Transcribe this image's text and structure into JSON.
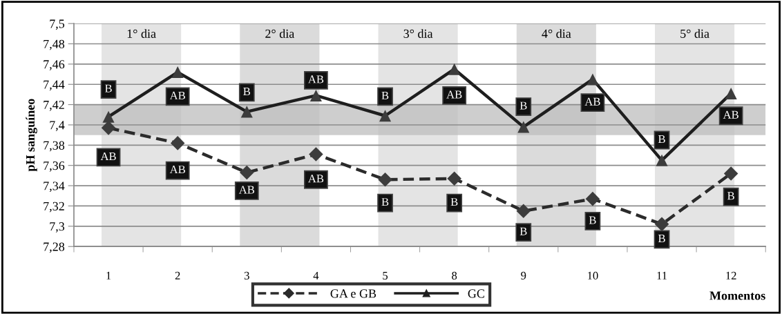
{
  "chart_data": {
    "type": "line",
    "xlabel": "Momentos",
    "ylabel": "pH sanguíneo",
    "categories": [
      "1",
      "2",
      "3",
      "4",
      "5",
      "8",
      "9",
      "10",
      "11",
      "12"
    ],
    "series": [
      {
        "name": "GA e GB",
        "color": "#2b2b2b",
        "marker": "diamond",
        "line_style": "dashed",
        "values": [
          7.397,
          7.382,
          7.353,
          7.371,
          7.346,
          7.347,
          7.315,
          7.327,
          7.302,
          7.352
        ]
      },
      {
        "name": "GC",
        "color": "#1e1e1e",
        "marker": "triangle",
        "line_style": "solid",
        "values": [
          7.408,
          7.452,
          7.413,
          7.429,
          7.409,
          7.455,
          7.398,
          7.445,
          7.365,
          7.431
        ]
      }
    ],
    "ylim": [
      7.28,
      7.5
    ],
    "yticks": [
      {
        "value": 7.28,
        "label": "7,28"
      },
      {
        "value": 7.3,
        "label": "7,3"
      },
      {
        "value": 7.32,
        "label": "7,32"
      },
      {
        "value": 7.34,
        "label": "7,34"
      },
      {
        "value": 7.36,
        "label": "7,36"
      },
      {
        "value": 7.38,
        "label": "7,38"
      },
      {
        "value": 7.4,
        "label": "7,4"
      },
      {
        "value": 7.42,
        "label": "7,42"
      },
      {
        "value": 7.44,
        "label": "7,44"
      },
      {
        "value": 7.46,
        "label": "7,46"
      },
      {
        "value": 7.48,
        "label": "7,48"
      },
      {
        "value": 7.5,
        "label": "7,5"
      }
    ],
    "grid": "y",
    "legend": "bottom",
    "bands": [
      {
        "axis": "x",
        "from": "1",
        "to": "2",
        "label": "1° dia",
        "color": "#e4e4e4"
      },
      {
        "axis": "x",
        "from": "3",
        "to": "4",
        "label": "2° dia",
        "color": "#dbdbdb"
      },
      {
        "axis": "x",
        "from": "5",
        "to": "8",
        "label": "3° dia",
        "color": "#e4e4e4"
      },
      {
        "axis": "x",
        "from": "9",
        "to": "10",
        "label": "4° dia",
        "color": "#dbdbdb"
      },
      {
        "axis": "x",
        "from": "11",
        "to": "12",
        "label": "5° dia",
        "color": "#e4e4e4"
      },
      {
        "axis": "y",
        "from": 7.39,
        "to": 7.42,
        "color": "#bdbdbd"
      }
    ],
    "annotations": [
      {
        "text": "B",
        "x": "1",
        "y": 7.435
      },
      {
        "text": "AB",
        "x": "2",
        "y": 7.428
      },
      {
        "text": "B",
        "x": "3",
        "y": 7.432
      },
      {
        "text": "AB",
        "x": "4",
        "y": 7.444
      },
      {
        "text": "B",
        "x": "5",
        "y": 7.428
      },
      {
        "text": "AB",
        "x": "8",
        "y": 7.429
      },
      {
        "text": "B",
        "x": "9",
        "y": 7.418
      },
      {
        "text": "AB",
        "x": "10",
        "y": 7.422
      },
      {
        "text": "B",
        "x": "11",
        "y": 7.385
      },
      {
        "text": "AB",
        "x": "12",
        "y": 7.409
      },
      {
        "text": "AB",
        "x": "1",
        "y": 7.368
      },
      {
        "text": "AB",
        "x": "2",
        "y": 7.355
      },
      {
        "text": "AB",
        "x": "3",
        "y": 7.335
      },
      {
        "text": "AB",
        "x": "4",
        "y": 7.346
      },
      {
        "text": "B",
        "x": "5",
        "y": 7.323
      },
      {
        "text": "B",
        "x": "8",
        "y": 7.323
      },
      {
        "text": "B",
        "x": "9",
        "y": 7.294
      },
      {
        "text": "B",
        "x": "10",
        "y": 7.305
      },
      {
        "text": "B",
        "x": "11",
        "y": 7.287
      },
      {
        "text": "B",
        "x": "12",
        "y": 7.329
      }
    ]
  }
}
